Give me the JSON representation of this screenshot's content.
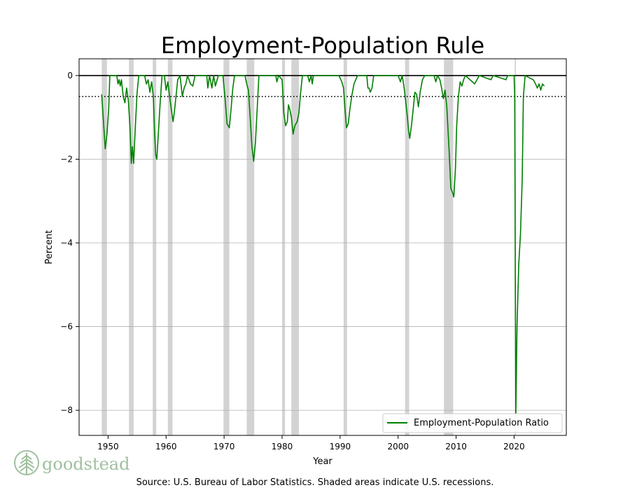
{
  "brand": {
    "name": "goodstead",
    "color": "#9fbf9f"
  },
  "footer": {
    "source": "Source: U.S. Bureau of Labor Statistics. Shaded areas indicate U.S. recessions."
  },
  "chart_data": {
    "type": "line",
    "title": "Employment-Population Rule",
    "xlabel": "Year",
    "ylabel": "Percent",
    "xlim": [
      1945,
      2029
    ],
    "ylim": [
      -8.6,
      0.4
    ],
    "x_ticks": [
      1950,
      1960,
      1970,
      1980,
      1990,
      2000,
      2010,
      2020
    ],
    "y_ticks": [
      0,
      -2,
      -4,
      -6,
      -8
    ],
    "y_tick_labels": [
      "0",
      "−2",
      "−4",
      "−6",
      "−8"
    ],
    "grid": "horizontal",
    "legend": "bottom-right",
    "reference_lines": [
      {
        "y": 0,
        "style": "solid",
        "color": "#000000"
      },
      {
        "y": -0.5,
        "style": "dotted",
        "color": "#000000"
      }
    ],
    "recession_color": "#d3d3d3",
    "recessions": [
      [
        1948.9,
        1949.8
      ],
      [
        1953.6,
        1954.4
      ],
      [
        1957.7,
        1958.3
      ],
      [
        1960.3,
        1961.1
      ],
      [
        1969.9,
        1970.9
      ],
      [
        1973.9,
        1975.2
      ],
      [
        1980.0,
        1980.5
      ],
      [
        1981.6,
        1982.9
      ],
      [
        1990.6,
        1991.2
      ],
      [
        2001.2,
        2001.9
      ],
      [
        2007.9,
        2009.5
      ],
      [
        2020.1,
        2020.3
      ]
    ],
    "series": [
      {
        "name": "Employment-Population Ratio",
        "color": "#008000",
        "points": [
          [
            1948.9,
            -0.45
          ],
          [
            1949.2,
            -1.1
          ],
          [
            1949.5,
            -1.75
          ],
          [
            1949.8,
            -1.4
          ],
          [
            1950.1,
            -0.8
          ],
          [
            1950.3,
            0
          ],
          [
            1951.5,
            0
          ],
          [
            1951.7,
            -0.2
          ],
          [
            1951.9,
            -0.1
          ],
          [
            1952.1,
            -0.25
          ],
          [
            1952.3,
            -0.1
          ],
          [
            1952.6,
            -0.5
          ],
          [
            1952.9,
            -0.65
          ],
          [
            1953.2,
            -0.3
          ],
          [
            1953.5,
            -0.6
          ],
          [
            1953.8,
            -1.3
          ],
          [
            1954.0,
            -2.1
          ],
          [
            1954.2,
            -1.7
          ],
          [
            1954.4,
            -2.1
          ],
          [
            1954.7,
            -1.2
          ],
          [
            1955.0,
            -0.4
          ],
          [
            1955.3,
            0
          ],
          [
            1956.3,
            0
          ],
          [
            1956.6,
            -0.2
          ],
          [
            1956.9,
            -0.1
          ],
          [
            1957.2,
            -0.4
          ],
          [
            1957.5,
            -0.15
          ],
          [
            1957.8,
            -0.5
          ],
          [
            1958.0,
            -1.3
          ],
          [
            1958.2,
            -1.9
          ],
          [
            1958.4,
            -2.0
          ],
          [
            1958.7,
            -1.3
          ],
          [
            1959.0,
            -0.6
          ],
          [
            1959.3,
            0
          ],
          [
            1959.7,
            0
          ],
          [
            1960.0,
            -0.35
          ],
          [
            1960.3,
            -0.15
          ],
          [
            1960.6,
            -0.5
          ],
          [
            1960.9,
            -0.8
          ],
          [
            1961.2,
            -1.1
          ],
          [
            1961.4,
            -0.9
          ],
          [
            1961.7,
            -0.5
          ],
          [
            1962.0,
            -0.1
          ],
          [
            1962.4,
            0
          ],
          [
            1962.8,
            -0.5
          ],
          [
            1963.1,
            -0.3
          ],
          [
            1963.4,
            -0.2
          ],
          [
            1963.7,
            0
          ],
          [
            1964.2,
            -0.2
          ],
          [
            1964.6,
            -0.25
          ],
          [
            1965.0,
            0
          ],
          [
            1967.0,
            0
          ],
          [
            1967.2,
            -0.3
          ],
          [
            1967.5,
            0
          ],
          [
            1967.9,
            -0.3
          ],
          [
            1968.2,
            0
          ],
          [
            1968.5,
            -0.25
          ],
          [
            1968.8,
            -0.1
          ],
          [
            1969.0,
            0
          ],
          [
            1969.8,
            0
          ],
          [
            1970.2,
            -0.6
          ],
          [
            1970.5,
            -1.15
          ],
          [
            1970.9,
            -1.25
          ],
          [
            1971.2,
            -0.8
          ],
          [
            1971.5,
            -0.3
          ],
          [
            1971.8,
            0
          ],
          [
            1973.6,
            0
          ],
          [
            1973.9,
            -0.2
          ],
          [
            1974.2,
            -0.35
          ],
          [
            1974.5,
            -1.0
          ],
          [
            1974.8,
            -1.7
          ],
          [
            1975.1,
            -2.05
          ],
          [
            1975.4,
            -1.6
          ],
          [
            1975.7,
            -0.8
          ],
          [
            1976.0,
            0
          ],
          [
            1978.9,
            0
          ],
          [
            1979.1,
            -0.15
          ],
          [
            1979.4,
            0
          ],
          [
            1980.0,
            -0.1
          ],
          [
            1980.3,
            -0.9
          ],
          [
            1980.6,
            -1.2
          ],
          [
            1980.9,
            -1.1
          ],
          [
            1981.1,
            -0.7
          ],
          [
            1981.3,
            -0.8
          ],
          [
            1981.6,
            -1.0
          ],
          [
            1981.9,
            -1.4
          ],
          [
            1982.2,
            -1.2
          ],
          [
            1982.6,
            -1.1
          ],
          [
            1982.9,
            -0.9
          ],
          [
            1983.2,
            -0.4
          ],
          [
            1983.5,
            0
          ],
          [
            1984.4,
            0
          ],
          [
            1984.7,
            -0.15
          ],
          [
            1985.0,
            0
          ],
          [
            1985.2,
            -0.2
          ],
          [
            1985.4,
            0
          ],
          [
            1989.8,
            0
          ],
          [
            1990.3,
            -0.15
          ],
          [
            1990.6,
            -0.3
          ],
          [
            1990.9,
            -0.9
          ],
          [
            1991.1,
            -1.25
          ],
          [
            1991.4,
            -1.15
          ],
          [
            1991.7,
            -0.8
          ],
          [
            1992.0,
            -0.5
          ],
          [
            1992.4,
            -0.2
          ],
          [
            1992.7,
            -0.1
          ],
          [
            1993.0,
            0
          ],
          [
            1994.6,
            0
          ],
          [
            1994.8,
            -0.3
          ],
          [
            1995.0,
            -0.3
          ],
          [
            1995.2,
            -0.4
          ],
          [
            1995.5,
            -0.3
          ],
          [
            1995.8,
            0
          ],
          [
            2000.0,
            0
          ],
          [
            2000.4,
            -0.15
          ],
          [
            2000.7,
            0
          ],
          [
            2001.0,
            -0.25
          ],
          [
            2001.3,
            -0.6
          ],
          [
            2001.6,
            -1.0
          ],
          [
            2001.8,
            -1.3
          ],
          [
            2002.0,
            -1.5
          ],
          [
            2002.3,
            -1.2
          ],
          [
            2002.6,
            -0.8
          ],
          [
            2002.9,
            -0.4
          ],
          [
            2003.2,
            -0.45
          ],
          [
            2003.5,
            -0.75
          ],
          [
            2003.8,
            -0.4
          ],
          [
            2004.2,
            -0.1
          ],
          [
            2004.6,
            0
          ],
          [
            2006.2,
            0
          ],
          [
            2006.5,
            -0.15
          ],
          [
            2006.8,
            0
          ],
          [
            2007.2,
            -0.1
          ],
          [
            2007.5,
            -0.3
          ],
          [
            2007.8,
            -0.55
          ],
          [
            2008.1,
            -0.35
          ],
          [
            2008.4,
            -0.75
          ],
          [
            2008.8,
            -1.8
          ],
          [
            2009.1,
            -2.7
          ],
          [
            2009.4,
            -2.8
          ],
          [
            2009.6,
            -2.9
          ],
          [
            2009.9,
            -2.2
          ],
          [
            2010.1,
            -1.2
          ],
          [
            2010.4,
            -0.5
          ],
          [
            2010.7,
            -0.15
          ],
          [
            2011.0,
            -0.25
          ],
          [
            2011.3,
            -0.1
          ],
          [
            2011.6,
            0
          ],
          [
            2013.2,
            -0.2
          ],
          [
            2013.6,
            -0.1
          ],
          [
            2014.0,
            0
          ],
          [
            2016.0,
            -0.1
          ],
          [
            2016.4,
            0
          ],
          [
            2018.6,
            -0.1
          ],
          [
            2018.9,
            0
          ],
          [
            2020.0,
            0
          ],
          [
            2020.1,
            -0.5
          ],
          [
            2020.2,
            -4.5
          ],
          [
            2020.3,
            -8.1
          ],
          [
            2020.5,
            -6.0
          ],
          [
            2020.8,
            -4.5
          ],
          [
            2021.1,
            -3.8
          ],
          [
            2021.4,
            -2.5
          ],
          [
            2021.6,
            -0.5
          ],
          [
            2021.9,
            0
          ],
          [
            2023.3,
            -0.1
          ],
          [
            2023.7,
            -0.2
          ],
          [
            2024.0,
            -0.3
          ],
          [
            2024.3,
            -0.2
          ],
          [
            2024.6,
            -0.35
          ],
          [
            2024.9,
            -0.2
          ],
          [
            2025.2,
            -0.25
          ]
        ]
      }
    ]
  }
}
